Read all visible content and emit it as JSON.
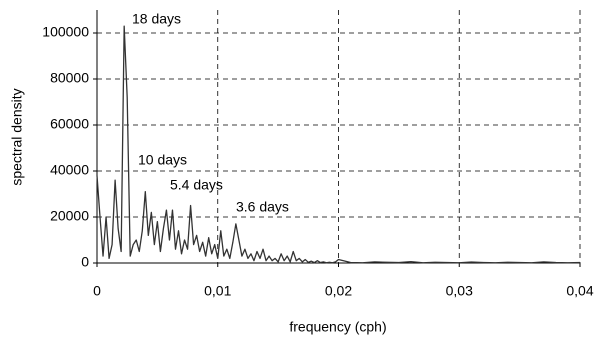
{
  "chart_data": {
    "type": "line",
    "x_label": "frequency (cph)",
    "y_label": "spectral density",
    "annotations": [
      "18 days",
      "10 days",
      "5.4 days",
      "3.6 days"
    ],
    "x": [
      0,
      0.00025,
      0.0005,
      0.00075,
      0.001,
      0.00125,
      0.0015,
      0.00175,
      0.002,
      0.00225,
      0.0025,
      0.00275,
      0.003,
      0.00325,
      0.0035,
      0.00375,
      0.004,
      0.00425,
      0.0045,
      0.00475,
      0.005,
      0.00525,
      0.0055,
      0.00575,
      0.006,
      0.00625,
      0.0065,
      0.00675,
      0.007,
      0.00725,
      0.0075,
      0.00775,
      0.008,
      0.00825,
      0.0085,
      0.00875,
      0.009,
      0.00925,
      0.0095,
      0.00975,
      0.01,
      0.01025,
      0.0105,
      0.01075,
      0.011,
      0.01125,
      0.0115,
      0.01175,
      0.012,
      0.01225,
      0.0125,
      0.01275,
      0.013,
      0.01325,
      0.0135,
      0.01375,
      0.014,
      0.01425,
      0.0145,
      0.01475,
      0.015,
      0.01525,
      0.0155,
      0.01575,
      0.016,
      0.01625,
      0.0165,
      0.01675,
      0.017,
      0.01725,
      0.0175,
      0.01775,
      0.018,
      0.01825,
      0.0185,
      0.01875,
      0.019,
      0.01925,
      0.0195,
      0.01975,
      0.02,
      0.021,
      0.022,
      0.023,
      0.024,
      0.025,
      0.026,
      0.027,
      0.028,
      0.029,
      0.03,
      0.031,
      0.032,
      0.033,
      0.034,
      0.035,
      0.036,
      0.037,
      0.038,
      0.039,
      0.04
    ],
    "series": [
      {
        "color": "#333333",
        "values": [
          38000,
          20000,
          3000,
          20000,
          2000,
          8000,
          36000,
          15000,
          5000,
          103000,
          72000,
          3000,
          8000,
          10000,
          5000,
          14000,
          31000,
          12000,
          22000,
          8000,
          18000,
          5000,
          15000,
          23000,
          10000,
          23000,
          6000,
          14000,
          4000,
          10000,
          6000,
          25000,
          8000,
          12000,
          5000,
          9000,
          3000,
          11000,
          4000,
          8000,
          2000,
          14000,
          3000,
          6000,
          2000,
          9000,
          17000,
          10000,
          3000,
          6000,
          2000,
          4000,
          1000,
          5000,
          2000,
          6000,
          1000,
          3000,
          1000,
          2000,
          500,
          4000,
          1000,
          3000,
          500,
          5000,
          1000,
          2000,
          500,
          1500,
          300,
          800,
          200,
          1000,
          200,
          500,
          100,
          300,
          100,
          500,
          1500,
          200,
          100,
          500,
          300,
          200,
          600,
          100,
          300,
          200,
          100,
          400,
          200,
          100,
          300,
          200,
          100,
          500,
          200,
          100,
          200
        ]
      }
    ],
    "xlim": [
      0,
      0.04
    ],
    "xticks": [
      {
        "value": 0,
        "label": "0"
      },
      {
        "value": 0.01,
        "label": "0,01"
      },
      {
        "value": 0.02,
        "label": "0,02"
      },
      {
        "value": 0.03,
        "label": "0,03"
      },
      {
        "value": 0.04,
        "label": "0,04"
      }
    ],
    "ylim": [
      0,
      110000
    ],
    "yticks": [
      0,
      20000,
      40000,
      60000,
      80000,
      100000
    ],
    "grid": true
  }
}
